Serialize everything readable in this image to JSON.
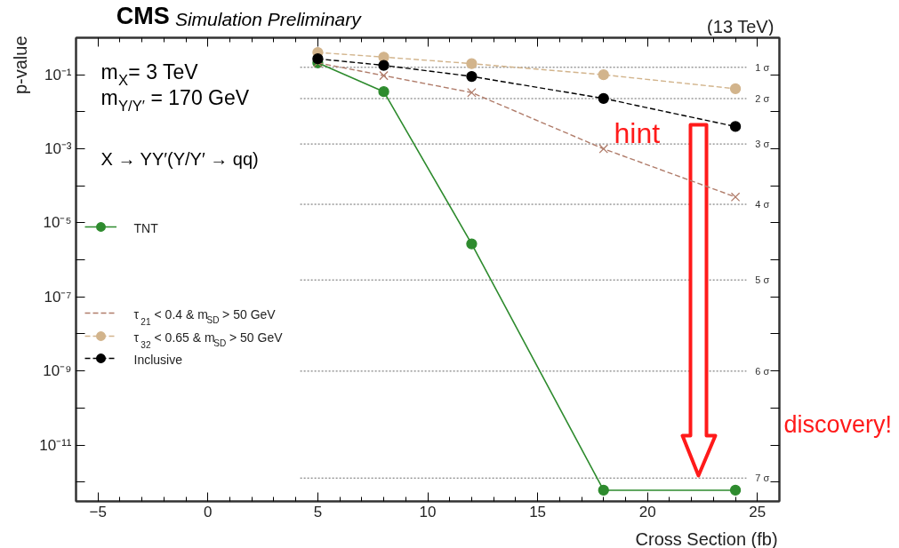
{
  "chart_data": {
    "type": "line",
    "title": "CMS",
    "subtitle": "Simulation Preliminary",
    "xlabel": "Cross Section (fb)",
    "ylabel": "p-value",
    "x": [
      5,
      8,
      12,
      18,
      24
    ],
    "series": [
      {
        "name": "TNT",
        "color": "#2e8b2e",
        "values": [
          0.21,
          0.035,
          2.7e-06,
          6e-13,
          6e-13
        ],
        "marker": "circle",
        "line_style": "solid"
      },
      {
        "name": "τ$_{21}$ < 0.4 & m$_{SD}$ > 50 GeV",
        "color": "#b07c6a",
        "values": [
          0.21,
          0.095,
          0.033,
          0.001,
          5e-05
        ],
        "marker": "cross",
        "line_style": "dashed"
      },
      {
        "name": "τ$_{32}$ < 0.65 & m$_{SD}$ > 50 GeV",
        "color": "#d2b48c",
        "values": [
          0.4,
          0.3,
          0.2,
          0.1,
          0.042
        ],
        "marker": "circle",
        "line_style": "dashed"
      },
      {
        "name": "Inclusive",
        "color": "#000000",
        "values": [
          0.27,
          0.18,
          0.09,
          0.023,
          0.004
        ],
        "marker": "circle",
        "line_style": "dashed"
      }
    ],
    "xlim": [
      -6,
      26
    ],
    "xticks": [
      -5,
      0,
      5,
      10,
      15,
      20,
      25
    ],
    "ylim": [
      3e-13,
      1
    ],
    "log": true,
    "yticks": [
      {
        "value": 0.1,
        "label": "10⁻¹"
      },
      {
        "value": 0.01,
        "label": null
      },
      {
        "value": 0.001,
        "label": "10⁻³"
      },
      {
        "value": 0.0001,
        "label": null
      },
      {
        "value": 1e-05,
        "label": "10⁻⁵"
      },
      {
        "value": 1e-06,
        "label": null
      },
      {
        "value": 1e-07,
        "label": "10⁻⁷"
      },
      {
        "value": 1e-08,
        "label": null
      },
      {
        "value": 1e-09,
        "label": "10⁻⁹"
      },
      {
        "value": 1e-10,
        "label": null
      },
      {
        "value": 1e-11,
        "label": "10⁻¹¹"
      },
      {
        "value": 1e-12,
        "label": null
      }
    ],
    "ref_lines": [
      {
        "axis": "y",
        "value": 0.1587,
        "label": "1 σ",
        "color": "#666666",
        "line_style": "dotted"
      },
      {
        "axis": "y",
        "value": 0.02275,
        "label": "2 σ",
        "color": "#666666",
        "line_style": "dotted"
      },
      {
        "axis": "y",
        "value": 0.00135,
        "label": "3 σ",
        "color": "#666666",
        "line_style": "dotted"
      },
      {
        "axis": "y",
        "value": 3.17e-05,
        "label": "4 σ",
        "color": "#666666",
        "line_style": "dotted"
      },
      {
        "axis": "y",
        "value": 2.87e-07,
        "label": "5 σ",
        "color": "#666666",
        "line_style": "dotted"
      },
      {
        "axis": "y",
        "value": 9.87e-10,
        "label": "6 σ",
        "color": "#666666",
        "line_style": "dotted"
      },
      {
        "axis": "y",
        "value": 1.28e-12,
        "label": "7 σ",
        "color": "#666666",
        "line_style": "dotted"
      }
    ],
    "annotations": [
      "(13 TeV)",
      "m$_{X}$= 3 TeV",
      "m$_{Y/Y′}$= 170 GeV",
      "X → YY′(Y/Y′ → qq)",
      "hint",
      "discovery!"
    ],
    "legend": "left"
  }
}
